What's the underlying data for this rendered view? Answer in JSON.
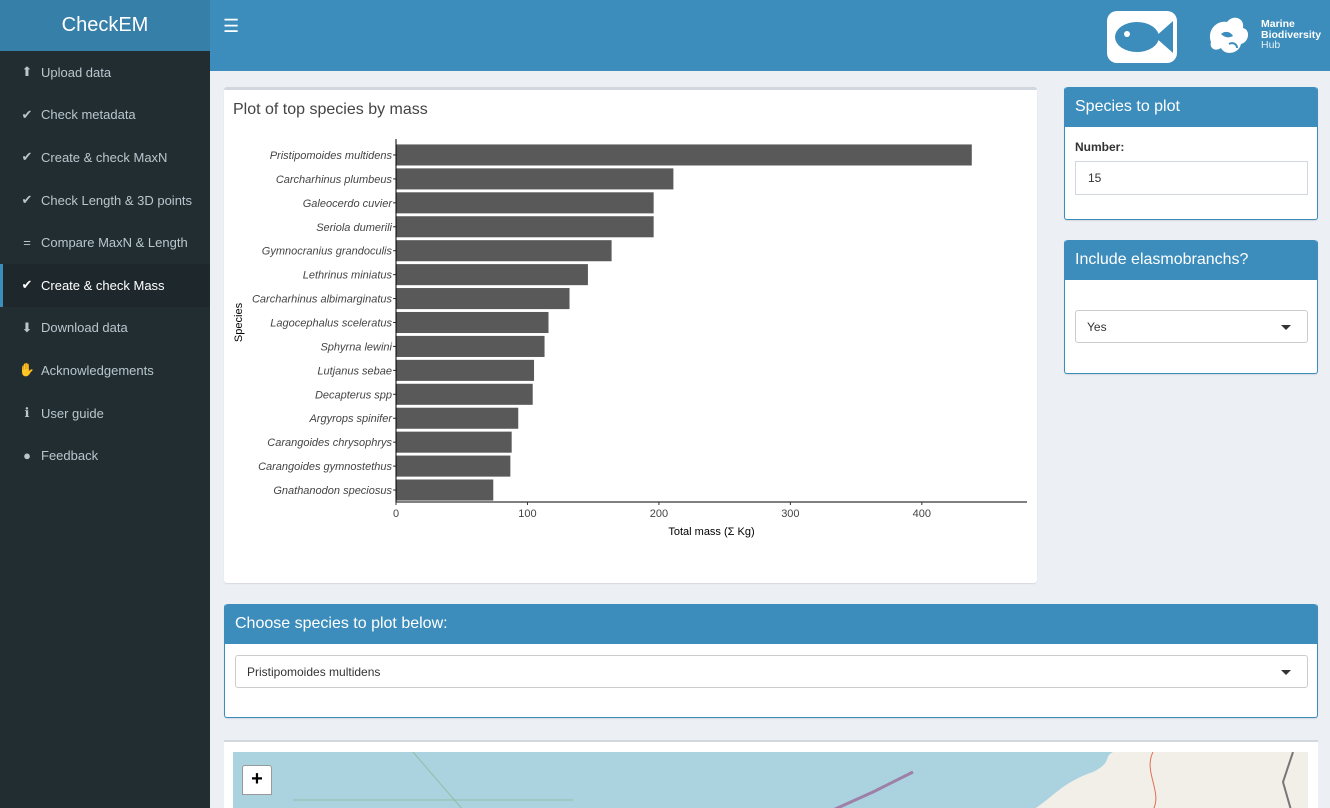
{
  "app": {
    "title": "CheckEM"
  },
  "sidebar": {
    "items": [
      {
        "label": "Upload data",
        "icon": "upload-icon"
      },
      {
        "label": "Check metadata",
        "icon": "check-icon"
      },
      {
        "label": "Create & check MaxN",
        "icon": "check-icon"
      },
      {
        "label": "Check Length & 3D points",
        "icon": "check-icon"
      },
      {
        "label": "Compare MaxN & Length",
        "icon": "equals-icon"
      },
      {
        "label": "Create & check Mass",
        "icon": "check-icon"
      },
      {
        "label": "Download data",
        "icon": "download-icon"
      },
      {
        "label": "Acknowledgements",
        "icon": "handshake-icon"
      },
      {
        "label": "User guide",
        "icon": "info-icon"
      },
      {
        "label": "Feedback",
        "icon": "comment-icon"
      }
    ],
    "active_index": 5
  },
  "header": {
    "logo_text": [
      "Marine",
      "Biodiversity",
      "Hub"
    ]
  },
  "plot_box": {
    "title": "Plot of top species by mass"
  },
  "species_box": {
    "title": "Species to plot",
    "number_label": "Number:",
    "number_value": "15"
  },
  "elasmo_box": {
    "title": "Include elasmobranchs?",
    "selected": "Yes"
  },
  "choose_box": {
    "title": "Choose species to plot below:",
    "selected": "Pristipomoides multidens"
  },
  "map": {
    "zoom_in": "+"
  },
  "chart_data": {
    "type": "bar",
    "orientation": "horizontal",
    "categories": [
      "Pristipomoides multidens",
      "Carcharhinus plumbeus",
      "Galeocerdo cuvier",
      "Seriola dumerili",
      "Gymnocranius grandoculis",
      "Lethrinus miniatus",
      "Carcharhinus albimarginatus",
      "Lagocephalus sceleratus",
      "Sphyrna lewini",
      "Lutjanus sebae",
      "Decapterus spp",
      "Argyrops spinifer",
      "Carangoides chrysophrys",
      "Carangoides gymnostethus",
      "Gnathanodon speciosus"
    ],
    "values": [
      438,
      211,
      196,
      196,
      164,
      146,
      132,
      116,
      113,
      105,
      104,
      93,
      88,
      87,
      74
    ],
    "xlabel": "Total mass (Σ Kg)",
    "ylabel": "Species",
    "xlim": [
      0,
      480
    ],
    "xticks": [
      0,
      100,
      200,
      300,
      400
    ],
    "bar_color": "#595959",
    "grid": false
  }
}
